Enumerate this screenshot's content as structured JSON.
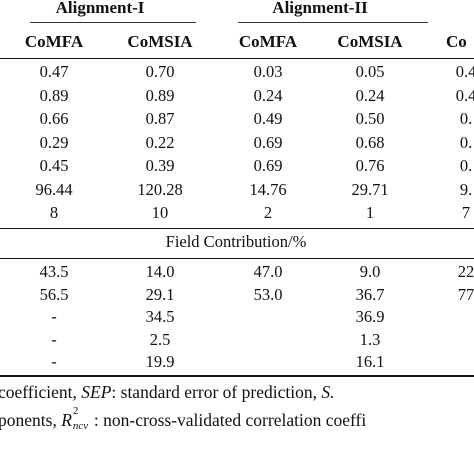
{
  "groups": [
    {
      "label": "Alignment-I"
    },
    {
      "label": "Alignment-II"
    }
  ],
  "columns": [
    "CoMFA",
    "CoMSIA",
    "CoMFA",
    "CoMSIA",
    "Co"
  ],
  "stats_rows": [
    [
      "0.47",
      "0.70",
      "0.03",
      "0.05",
      "0.4"
    ],
    [
      "0.89",
      "0.89",
      "0.24",
      "0.24",
      "0.4"
    ],
    [
      "0.66",
      "0.87",
      "0.49",
      "0.50",
      "0."
    ],
    [
      "0.29",
      "0.22",
      "0.69",
      "0.68",
      "0."
    ],
    [
      "0.45",
      "0.39",
      "0.69",
      "0.76",
      "0."
    ],
    [
      "96.44",
      "120.28",
      "14.76",
      "29.71",
      "9."
    ],
    [
      "8",
      "10",
      "2",
      "1",
      "7"
    ]
  ],
  "section_title": "Field Contribution/%",
  "field_rows": [
    [
      "43.5",
      "14.0",
      "47.0",
      "9.0",
      "22"
    ],
    [
      "56.5",
      "29.1",
      "53.0",
      "36.7",
      "77"
    ],
    [
      "-",
      "34.5",
      "",
      "36.9",
      ""
    ],
    [
      "-",
      "2.5",
      "",
      "1.3",
      ""
    ],
    [
      "-",
      "19.9",
      "",
      "16.1",
      ""
    ]
  ],
  "footnote": {
    "line1_a": "coefficient,",
    "line1_sep": "SEP",
    "line1_b": ": standard error of prediction,",
    "line1_s": "S.",
    "line2_a": "ponents,",
    "line2_sym": "R",
    "line2_sup": "2",
    "line2_sub": "ncv",
    "line2_b": ": non-cross-validated correlation coeffi"
  }
}
